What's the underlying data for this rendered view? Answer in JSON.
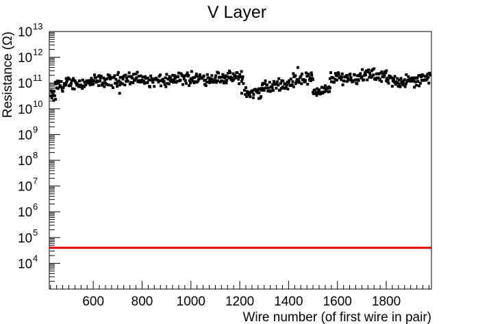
{
  "chart_data": {
    "type": "scatter",
    "title": "V Layer",
    "xlabel": "Wire number (of first wire in pair)",
    "ylabel": "Resistance (Ω)",
    "xlim": [
      420,
      1985
    ],
    "ylim": [
      1000,
      10000000000000
    ],
    "yscale": "log",
    "grid": false,
    "x_ticks": [
      "600",
      "800",
      "1000",
      "1200",
      "1400",
      "1600",
      "1800"
    ],
    "y_tick_exponents": [
      "4",
      "5",
      "6",
      "7",
      "8",
      "9",
      "10",
      "11",
      "12",
      "13"
    ],
    "y_tick_base": "10",
    "marker_color": "#000000",
    "threshold_line": {
      "y": 40000,
      "color": "#e00000"
    },
    "segments": [
      {
        "x_start": 425,
        "x_end": 445,
        "y": 30000000000
      },
      {
        "x_start": 445,
        "x_end": 490,
        "y": 80000000000
      },
      {
        "x_start": 490,
        "x_end": 600,
        "y": 100000000000
      },
      {
        "x_start": 600,
        "x_end": 700,
        "y": 120000000000
      },
      {
        "x_start": 700,
        "x_end": 800,
        "y": 150000000000
      },
      {
        "x_start": 800,
        "x_end": 930,
        "y": 120000000000
      },
      {
        "x_start": 930,
        "x_end": 1100,
        "y": 150000000000
      },
      {
        "x_start": 1100,
        "x_end": 1215,
        "y": 160000000000
      },
      {
        "x_start": 1220,
        "x_end": 1290,
        "y": 40000000000
      },
      {
        "x_start": 1290,
        "x_end": 1340,
        "y": 70000000000
      },
      {
        "x_start": 1340,
        "x_end": 1420,
        "y": 90000000000
      },
      {
        "x_start": 1420,
        "x_end": 1500,
        "y": 150000000000
      },
      {
        "x_start": 1500,
        "x_end": 1570,
        "y": 50000000000
      },
      {
        "x_start": 1570,
        "x_end": 1700,
        "y": 160000000000
      },
      {
        "x_start": 1700,
        "x_end": 1800,
        "y": 200000000000
      },
      {
        "x_start": 1800,
        "x_end": 1940,
        "y": 120000000000
      },
      {
        "x_start": 1940,
        "x_end": 1980,
        "y": 150000000000
      }
    ],
    "outliers": [
      {
        "x": 708,
        "y": 40000000000
      },
      {
        "x": 1003,
        "y": 280000000000
      },
      {
        "x": 1207,
        "y": 280000000000
      },
      {
        "x": 1208,
        "y": 40000000000
      },
      {
        "x": 1278,
        "y": 60000000000
      },
      {
        "x": 1328,
        "y": 50000000000
      },
      {
        "x": 1438,
        "y": 400000000000
      }
    ]
  }
}
